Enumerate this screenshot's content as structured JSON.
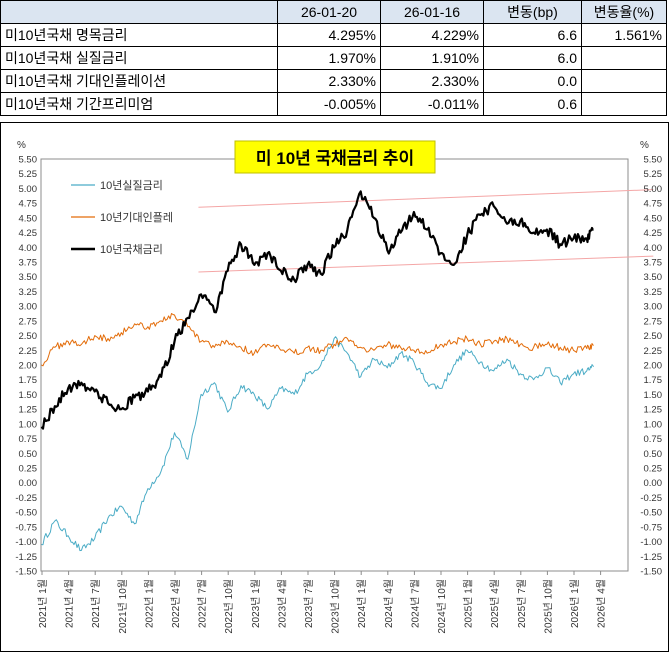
{
  "table": {
    "headers": [
      "",
      "26-01-20",
      "26-01-16",
      "변동(bp)",
      "변동율(%)"
    ],
    "rows": [
      [
        "미10년국채 명목금리",
        "4.295%",
        "4.229%",
        "6.6",
        "1.561%"
      ],
      [
        "미10년국채 실질금리",
        "1.970%",
        "1.910%",
        "6.0",
        ""
      ],
      [
        "미10년국채 기대인플레이션",
        "2.330%",
        "2.330%",
        "0.0",
        ""
      ],
      [
        "미10년국채 기간프리미엄",
        "-0.005%",
        "-0.011%",
        "0.6",
        ""
      ]
    ]
  },
  "chart_data": {
    "type": "line",
    "title": "미 10년  국채금리  추이",
    "y_unit_left": "%",
    "y_unit_right": "%",
    "ylim": [
      -1.5,
      5.5
    ],
    "ytick_step": 0.25,
    "x_ticks": [
      "2021년 1월",
      "2021년 4월",
      "2021년 7월",
      "2021년 10월",
      "2022년 1월",
      "2022년 4월",
      "2022년 7월",
      "2022년 10월",
      "2023년 1월",
      "2023년 4월",
      "2023년 7월",
      "2023년 10월",
      "2024년 1월",
      "2024년 4월",
      "2024년 7월",
      "2024년 10월",
      "2025년 1월",
      "2025년 4월",
      "2025년 7월",
      "2025년 10월",
      "2026년 1월",
      "2026년 4월"
    ],
    "series": [
      {
        "name": "10년실질금리",
        "color": "#4bacc6",
        "points": [
          [
            0,
            -1.05
          ],
          [
            1,
            -0.65
          ],
          [
            2,
            -0.9
          ],
          [
            3,
            -1.15
          ],
          [
            4,
            -0.95
          ],
          [
            5,
            -0.6
          ],
          [
            6,
            -0.4
          ],
          [
            7,
            -0.7
          ],
          [
            8,
            -0.1
          ],
          [
            9,
            0.2
          ],
          [
            10,
            0.85
          ],
          [
            11,
            0.4
          ],
          [
            12,
            1.5
          ],
          [
            13,
            1.7
          ],
          [
            14,
            1.2
          ],
          [
            15,
            1.65
          ],
          [
            16,
            1.5
          ],
          [
            17,
            1.25
          ],
          [
            18,
            1.6
          ],
          [
            19,
            1.5
          ],
          [
            20,
            1.85
          ],
          [
            21,
            2.0
          ],
          [
            22,
            2.45
          ],
          [
            23,
            2.2
          ],
          [
            24,
            1.8
          ],
          [
            25,
            2.1
          ],
          [
            26,
            1.95
          ],
          [
            27,
            2.2
          ],
          [
            28,
            2.05
          ],
          [
            29,
            1.7
          ],
          [
            30,
            1.6
          ],
          [
            31,
            2.0
          ],
          [
            32,
            2.25
          ],
          [
            33,
            2.05
          ],
          [
            34,
            1.9
          ],
          [
            35,
            2.1
          ],
          [
            36,
            1.85
          ],
          [
            37,
            1.75
          ],
          [
            38,
            1.95
          ],
          [
            39,
            1.7
          ],
          [
            40,
            1.85
          ],
          [
            41,
            1.9
          ],
          [
            41.5,
            1.97
          ]
        ]
      },
      {
        "name": "10년기대인플레",
        "color": "#e36c09",
        "points": [
          [
            0,
            2.0
          ],
          [
            1,
            2.3
          ],
          [
            2,
            2.4
          ],
          [
            3,
            2.35
          ],
          [
            4,
            2.5
          ],
          [
            5,
            2.45
          ],
          [
            6,
            2.55
          ],
          [
            7,
            2.7
          ],
          [
            8,
            2.65
          ],
          [
            9,
            2.75
          ],
          [
            10,
            2.85
          ],
          [
            11,
            2.65
          ],
          [
            12,
            2.4
          ],
          [
            13,
            2.3
          ],
          [
            14,
            2.4
          ],
          [
            15,
            2.3
          ],
          [
            16,
            2.2
          ],
          [
            17,
            2.35
          ],
          [
            18,
            2.25
          ],
          [
            19,
            2.2
          ],
          [
            20,
            2.3
          ],
          [
            21,
            2.25
          ],
          [
            22,
            2.35
          ],
          [
            23,
            2.45
          ],
          [
            24,
            2.3
          ],
          [
            25,
            2.25
          ],
          [
            26,
            2.35
          ],
          [
            27,
            2.3
          ],
          [
            28,
            2.25
          ],
          [
            29,
            2.2
          ],
          [
            30,
            2.35
          ],
          [
            31,
            2.4
          ],
          [
            32,
            2.45
          ],
          [
            33,
            2.35
          ],
          [
            34,
            2.4
          ],
          [
            35,
            2.45
          ],
          [
            36,
            2.35
          ],
          [
            37,
            2.3
          ],
          [
            38,
            2.35
          ],
          [
            39,
            2.3
          ],
          [
            40,
            2.25
          ],
          [
            41,
            2.28
          ],
          [
            41.5,
            2.33
          ]
        ]
      },
      {
        "name": "10년국채금리",
        "color": "#000000",
        "points": [
          [
            0,
            0.95
          ],
          [
            1,
            1.3
          ],
          [
            2,
            1.6
          ],
          [
            3,
            1.7
          ],
          [
            4,
            1.55
          ],
          [
            5,
            1.35
          ],
          [
            6,
            1.25
          ],
          [
            7,
            1.45
          ],
          [
            8,
            1.55
          ],
          [
            9,
            1.8
          ],
          [
            10,
            2.4
          ],
          [
            11,
            2.8
          ],
          [
            12,
            3.2
          ],
          [
            13,
            2.9
          ],
          [
            14,
            3.6
          ],
          [
            15,
            4.05
          ],
          [
            16,
            3.7
          ],
          [
            17,
            3.9
          ],
          [
            18,
            3.6
          ],
          [
            19,
            3.45
          ],
          [
            20,
            3.7
          ],
          [
            21,
            3.55
          ],
          [
            22,
            4.0
          ],
          [
            23,
            4.3
          ],
          [
            24,
            4.95
          ],
          [
            25,
            4.5
          ],
          [
            26,
            3.95
          ],
          [
            27,
            4.25
          ],
          [
            28,
            4.6
          ],
          [
            29,
            4.3
          ],
          [
            30,
            3.9
          ],
          [
            31,
            3.7
          ],
          [
            32,
            4.2
          ],
          [
            33,
            4.55
          ],
          [
            34,
            4.7
          ],
          [
            35,
            4.4
          ],
          [
            36,
            4.45
          ],
          [
            37,
            4.25
          ],
          [
            38,
            4.3
          ],
          [
            39,
            4.05
          ],
          [
            40,
            4.15
          ],
          [
            41,
            4.15
          ],
          [
            41.5,
            4.3
          ]
        ]
      }
    ],
    "trend_lines": [
      {
        "from": [
          11.8,
          4.68
        ],
        "to": [
          46,
          4.98
        ]
      },
      {
        "from": [
          11.8,
          3.58
        ],
        "to": [
          46,
          3.85
        ]
      }
    ]
  }
}
